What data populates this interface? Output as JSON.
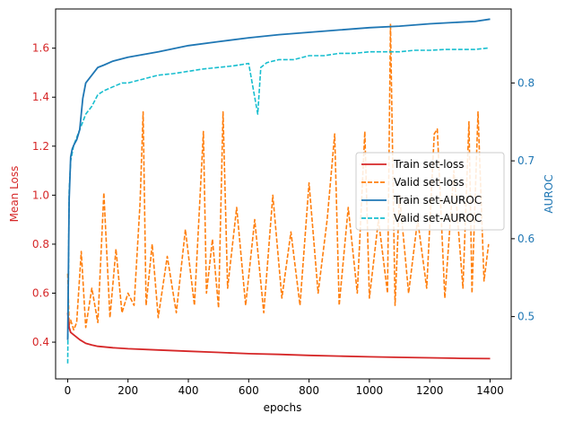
{
  "chart_data": {
    "type": "line",
    "xlabel": "epochs",
    "ylabel_left": "Mean Loss",
    "ylabel_right": "AUROC",
    "xlim": [
      -40,
      1470
    ],
    "ylim_left": [
      0.25,
      1.76
    ],
    "ylim_right": [
      0.42,
      0.895
    ],
    "x_ticks": [
      0,
      200,
      400,
      600,
      800,
      1000,
      1200,
      1400
    ],
    "y_ticks_left": [
      0.4,
      0.6,
      0.8,
      1.0,
      1.2,
      1.4,
      1.6
    ],
    "y_ticks_right": [
      0.5,
      0.6,
      0.7,
      0.8
    ],
    "legend_position": "center-right",
    "grid": false,
    "colors": {
      "left_axis": "#d62728",
      "right_axis": "#1f77b4",
      "train_loss": "#d62728",
      "valid_loss": "#ff7f0e",
      "train_auroc": "#1f77b4",
      "valid_auroc": "#17becf"
    },
    "series": [
      {
        "name": "Train set-loss",
        "axis": "left",
        "style": "solid",
        "x": [
          0,
          5,
          10,
          20,
          40,
          60,
          80,
          100,
          150,
          200,
          300,
          400,
          500,
          600,
          700,
          800,
          900,
          1000,
          1100,
          1200,
          1300,
          1400
        ],
        "y": [
          0.52,
          0.46,
          0.44,
          0.43,
          0.41,
          0.395,
          0.388,
          0.383,
          0.377,
          0.373,
          0.368,
          0.363,
          0.358,
          0.353,
          0.35,
          0.346,
          0.343,
          0.34,
          0.338,
          0.336,
          0.334,
          0.333
        ]
      },
      {
        "name": "Valid set-loss",
        "axis": "left",
        "style": "dashed",
        "x": [
          0,
          5,
          10,
          20,
          30,
          45,
          60,
          80,
          100,
          120,
          140,
          160,
          180,
          200,
          220,
          240,
          250,
          260,
          280,
          300,
          330,
          360,
          390,
          420,
          450,
          460,
          480,
          500,
          515,
          530,
          560,
          590,
          620,
          650,
          680,
          710,
          740,
          770,
          800,
          830,
          860,
          885,
          900,
          930,
          960,
          985,
          1000,
          1030,
          1060,
          1070,
          1085,
          1100,
          1130,
          1160,
          1190,
          1215,
          1225,
          1250,
          1280,
          1310,
          1330,
          1340,
          1360,
          1380,
          1395
        ],
        "y": [
          0.68,
          0.47,
          0.49,
          0.45,
          0.48,
          0.77,
          0.46,
          0.62,
          0.48,
          1.01,
          0.5,
          0.78,
          0.52,
          0.6,
          0.55,
          0.97,
          1.34,
          0.55,
          0.8,
          0.5,
          0.75,
          0.52,
          0.86,
          0.55,
          1.26,
          0.6,
          0.82,
          0.54,
          1.34,
          0.62,
          0.95,
          0.55,
          0.9,
          0.52,
          1.0,
          0.58,
          0.85,
          0.55,
          1.05,
          0.6,
          0.9,
          1.25,
          0.55,
          0.95,
          0.6,
          1.26,
          0.58,
          0.9,
          0.6,
          1.7,
          0.55,
          1.0,
          0.6,
          0.9,
          0.62,
          1.25,
          1.27,
          0.58,
          1.1,
          0.62,
          1.3,
          0.6,
          1.34,
          0.65,
          0.8
        ]
      },
      {
        "name": "Train set-AUROC",
        "axis": "right",
        "style": "solid",
        "x": [
          0,
          5,
          10,
          15,
          20,
          30,
          40,
          50,
          60,
          80,
          100,
          120,
          150,
          200,
          300,
          400,
          500,
          600,
          700,
          800,
          900,
          1000,
          1100,
          1200,
          1300,
          1350,
          1400
        ],
        "y": [
          0.47,
          0.65,
          0.705,
          0.715,
          0.72,
          0.727,
          0.74,
          0.78,
          0.8,
          0.81,
          0.82,
          0.823,
          0.828,
          0.833,
          0.84,
          0.848,
          0.853,
          0.858,
          0.862,
          0.865,
          0.868,
          0.871,
          0.873,
          0.876,
          0.878,
          0.879,
          0.882
        ]
      },
      {
        "name": "Valid set-AUROC",
        "axis": "right",
        "style": "dashed",
        "x": [
          0,
          5,
          10,
          20,
          30,
          40,
          50,
          60,
          80,
          100,
          120,
          150,
          180,
          200,
          250,
          300,
          350,
          400,
          450,
          500,
          550,
          600,
          630,
          640,
          660,
          700,
          750,
          800,
          850,
          900,
          950,
          1000,
          1050,
          1100,
          1150,
          1200,
          1250,
          1300,
          1350,
          1395
        ],
        "y": [
          0.44,
          0.66,
          0.7,
          0.72,
          0.73,
          0.74,
          0.75,
          0.76,
          0.77,
          0.785,
          0.79,
          0.795,
          0.8,
          0.8,
          0.805,
          0.81,
          0.812,
          0.815,
          0.818,
          0.82,
          0.822,
          0.825,
          0.76,
          0.82,
          0.826,
          0.83,
          0.83,
          0.835,
          0.835,
          0.838,
          0.838,
          0.84,
          0.84,
          0.84,
          0.842,
          0.842,
          0.843,
          0.843,
          0.843,
          0.845
        ]
      }
    ]
  }
}
